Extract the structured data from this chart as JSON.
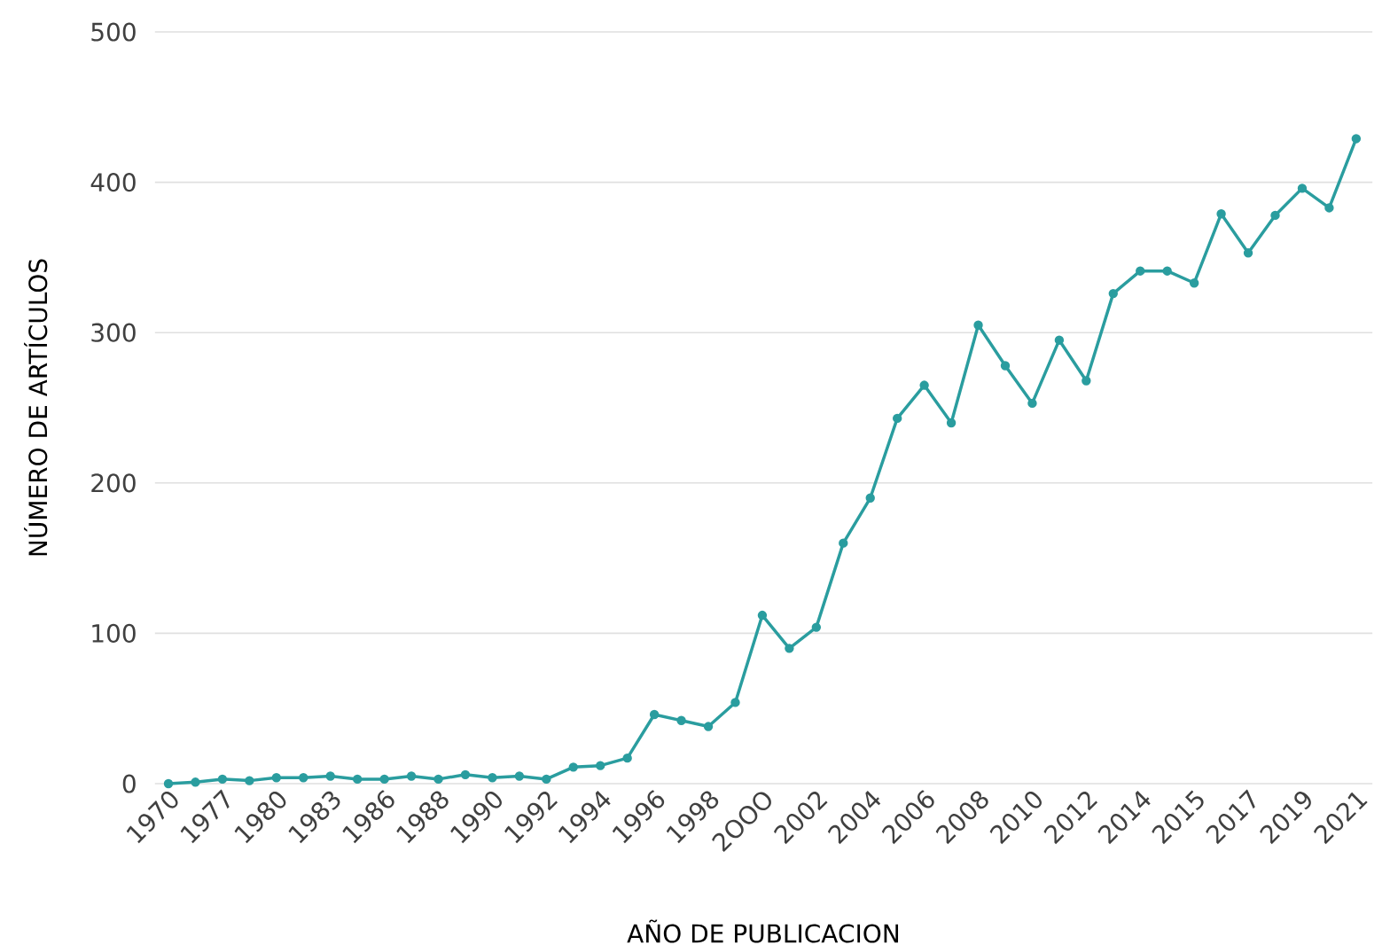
{
  "chart_data": {
    "type": "line",
    "xlabel": "AÑO DE PUBLICACION",
    "ylabel": "NÚMERO DE ARTÍCULOS",
    "categories": [
      "1970",
      null,
      "1977",
      null,
      "1980",
      null,
      "1983",
      null,
      "1986",
      null,
      "1988",
      null,
      "1990",
      null,
      "1992",
      null,
      "1994",
      null,
      "1996",
      null,
      "1998",
      null,
      "2OOO",
      null,
      "2002",
      null,
      "2004",
      null,
      "2006",
      null,
      "2008",
      null,
      "2010",
      null,
      "2012",
      null,
      "2014",
      null,
      "2015",
      null,
      "2017",
      null,
      "2019",
      null,
      "2021"
    ],
    "series": [
      {
        "color": "#2a9d9f",
        "values": [
          0,
          1,
          3,
          2,
          4,
          4,
          5,
          3,
          3,
          5,
          3,
          6,
          4,
          5,
          3,
          11,
          12,
          17,
          46,
          42,
          38,
          54,
          112,
          90,
          104,
          160,
          190,
          243,
          265,
          240,
          305,
          278,
          253,
          295,
          268,
          326,
          341,
          341,
          333,
          379,
          353,
          378,
          396,
          383,
          429
        ]
      }
    ],
    "ylim": [
      0,
      500
    ],
    "yticks": [
      0,
      100,
      200,
      300,
      400,
      500
    ],
    "grid": "y",
    "marker": "circle",
    "line_style": "solid"
  }
}
